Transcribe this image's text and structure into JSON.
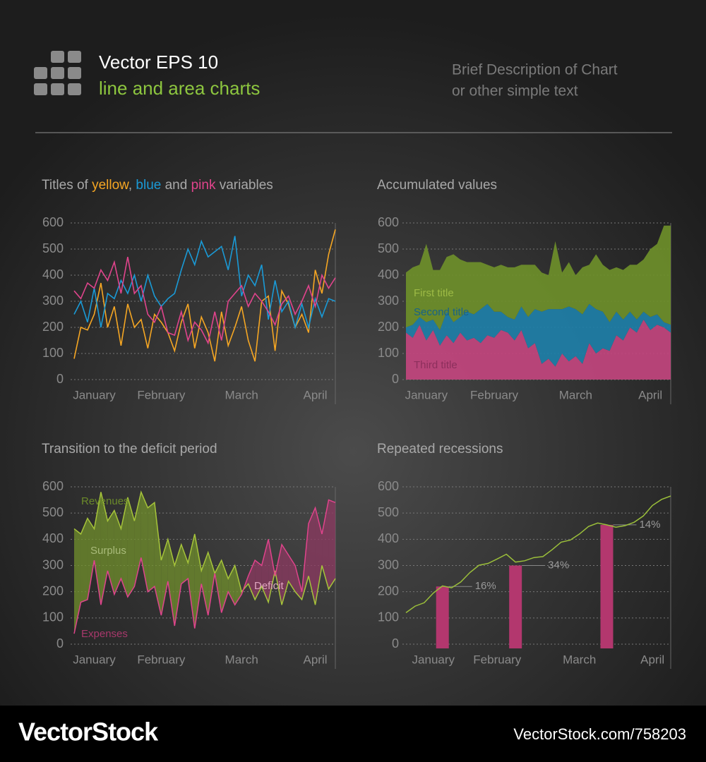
{
  "header": {
    "title": "Vector EPS 10",
    "subtitle": "line and area charts",
    "description": [
      "Brief Description of Chart",
      "or other simple text"
    ]
  },
  "footer": {
    "brand": "VectorStock",
    "url": "VectorStock.com/758203"
  },
  "chart_data": [
    {
      "type": "line",
      "title": [
        "Titles of ",
        "yellow",
        ", ",
        "blue",
        " and ",
        "pink",
        " variables"
      ],
      "title_colors": [
        null,
        "#f5a623",
        null,
        "#1a9ad6",
        null,
        "#e0448c",
        null
      ],
      "categories": [
        null,
        null,
        null,
        "January",
        null,
        null,
        null,
        null,
        null,
        null,
        null,
        null,
        null,
        "February",
        null,
        null,
        null,
        null,
        null,
        null,
        null,
        null,
        null,
        null,
        null,
        "March",
        null,
        null,
        null,
        null,
        null,
        null,
        null,
        null,
        null,
        null,
        "April",
        null,
        null,
        null
      ],
      "series": [
        {
          "color": "#f5a623",
          "values": [
            80,
            200,
            190,
            250,
            370,
            200,
            280,
            130,
            290,
            200,
            230,
            120,
            250,
            220,
            180,
            110,
            220,
            290,
            120,
            240,
            180,
            70,
            260,
            130,
            200,
            280,
            150,
            70,
            300,
            320,
            110,
            340,
            290,
            200,
            250,
            180,
            420,
            330,
            480,
            575
          ]
        },
        {
          "color": "#1a9ad6",
          "values": [
            250,
            300,
            220,
            350,
            200,
            330,
            310,
            380,
            330,
            400,
            300,
            400,
            320,
            280,
            310,
            330,
            420,
            500,
            440,
            530,
            470,
            490,
            510,
            420,
            550,
            320,
            400,
            360,
            440,
            230,
            380,
            260,
            300,
            200,
            290,
            200,
            310,
            240,
            310,
            300
          ]
        },
        {
          "color": "#e0448c",
          "values": [
            340,
            310,
            370,
            350,
            420,
            380,
            450,
            330,
            470,
            330,
            360,
            250,
            220,
            280,
            180,
            170,
            260,
            150,
            220,
            190,
            140,
            260,
            150,
            300,
            330,
            360,
            280,
            330,
            300,
            260,
            210,
            290,
            320,
            250,
            300,
            360,
            280,
            400,
            350,
            390
          ]
        }
      ],
      "ylim": [
        0,
        600
      ],
      "yticks": [
        0,
        100,
        200,
        300,
        400,
        500,
        600
      ],
      "grid": true
    },
    {
      "type": "stacked_area",
      "title": "Accumulated values",
      "categories": [
        null,
        null,
        null,
        "January",
        null,
        null,
        null,
        null,
        null,
        null,
        null,
        null,
        null,
        "February",
        null,
        null,
        null,
        null,
        null,
        null,
        null,
        null,
        null,
        null,
        null,
        "March",
        null,
        null,
        null,
        null,
        null,
        null,
        null,
        null,
        null,
        null,
        "April",
        null,
        null,
        null
      ],
      "series": [
        {
          "name": "Third title",
          "color": "#c2457e",
          "label_color": "#8c2f5c",
          "values": [
            180,
            160,
            210,
            150,
            190,
            130,
            170,
            140,
            180,
            150,
            160,
            140,
            170,
            160,
            190,
            180,
            150,
            190,
            120,
            140,
            60,
            80,
            50,
            100,
            70,
            90,
            60,
            140,
            100,
            120,
            110,
            170,
            150,
            200,
            180,
            230,
            190,
            210,
            200,
            180
          ]
        },
        {
          "name": "Second title",
          "color": "#1e7fa8",
          "label_color": "#17628a",
          "values": [
            20,
            50,
            30,
            70,
            40,
            60,
            90,
            80,
            60,
            110,
            90,
            130,
            120,
            100,
            70,
            60,
            80,
            90,
            120,
            130,
            200,
            190,
            220,
            170,
            210,
            180,
            190,
            150,
            170,
            140,
            110,
            90,
            80,
            60,
            50,
            30,
            50,
            40,
            20,
            30
          ]
        },
        {
          "name": "First title",
          "color": "#6e8f2a",
          "label_color": "#9dba45",
          "values": [
            210,
            220,
            200,
            300,
            190,
            230,
            210,
            260,
            220,
            190,
            200,
            180,
            150,
            170,
            180,
            190,
            200,
            160,
            200,
            170,
            150,
            130,
            260,
            140,
            170,
            130,
            180,
            150,
            210,
            180,
            200,
            170,
            190,
            180,
            210,
            200,
            260,
            270,
            370,
            380
          ]
        }
      ],
      "ylim": [
        0,
        600
      ],
      "yticks": [
        0,
        100,
        200,
        300,
        400,
        500,
        600
      ],
      "grid": true
    },
    {
      "type": "band",
      "title": "Transition to the deficit period",
      "categories": [
        null,
        null,
        null,
        "January",
        null,
        null,
        null,
        null,
        null,
        null,
        null,
        null,
        null,
        "February",
        null,
        null,
        null,
        null,
        null,
        null,
        null,
        null,
        null,
        null,
        null,
        "March",
        null,
        null,
        null,
        null,
        null,
        null,
        null,
        null,
        null,
        null,
        "April",
        null,
        null,
        null
      ],
      "series": [
        {
          "name": "Revenues",
          "color": "#a6c43a",
          "fill": "#71902c",
          "values": [
            440,
            420,
            480,
            440,
            580,
            470,
            510,
            440,
            560,
            470,
            580,
            520,
            540,
            320,
            400,
            300,
            380,
            310,
            420,
            280,
            350,
            270,
            320,
            250,
            300,
            200,
            230,
            170,
            220,
            160,
            280,
            150,
            240,
            200,
            170,
            260,
            150,
            300,
            210,
            250
          ]
        },
        {
          "name": "Expenses",
          "color": "#e0448c",
          "fill": "#8e3a62",
          "values": [
            40,
            160,
            170,
            320,
            150,
            280,
            190,
            250,
            180,
            220,
            330,
            200,
            220,
            110,
            240,
            70,
            230,
            250,
            60,
            230,
            110,
            270,
            120,
            200,
            150,
            190,
            260,
            320,
            300,
            400,
            260,
            380,
            340,
            300,
            200,
            460,
            520,
            420,
            550,
            540
          ]
        }
      ],
      "annotations": [
        "Surplus",
        "Deficit"
      ],
      "ylim": [
        0,
        600
      ],
      "yticks": [
        0,
        100,
        200,
        300,
        400,
        500,
        600
      ],
      "grid": true
    },
    {
      "type": "line_bar",
      "title": "Repeated recessions",
      "categories": [
        null,
        null,
        null,
        "January",
        null,
        null,
        null,
        null,
        null,
        null,
        "February",
        null,
        null,
        null,
        null,
        null,
        null,
        null,
        null,
        "March",
        null,
        null,
        null,
        null,
        null,
        null,
        null,
        "April",
        null,
        null
      ],
      "series": [
        {
          "type": "line",
          "color": "#9bbf3a",
          "values": [
            120,
            145,
            158,
            195,
            222,
            215,
            237,
            273,
            301,
            308,
            325,
            343,
            313,
            318,
            330,
            334,
            360,
            389,
            397,
            420,
            449,
            462,
            455,
            446,
            452,
            465,
            489,
            529,
            552,
            565
          ]
        },
        {
          "type": "bar",
          "color": "#b3376e",
          "values": [
            null,
            null,
            null,
            null,
            220,
            null,
            null,
            null,
            null,
            null,
            null,
            null,
            300,
            null,
            null,
            null,
            null,
            null,
            null,
            null,
            null,
            null,
            455,
            null,
            null,
            null,
            null,
            null,
            null,
            null
          ]
        }
      ],
      "annotations": [
        "16%",
        "34%",
        "14%"
      ],
      "ylim": [
        0,
        600
      ],
      "yticks": [
        0,
        100,
        200,
        300,
        400,
        500,
        600
      ],
      "grid": true
    }
  ]
}
